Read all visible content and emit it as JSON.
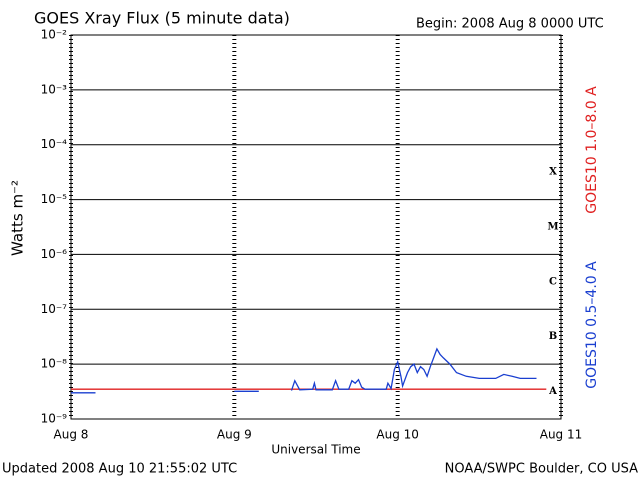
{
  "chart_data": {
    "type": "line",
    "title": "GOES Xray Flux (5 minute data)",
    "subtitle": "Begin:  2008 Aug 8 0000 UTC",
    "xlabel": "Universal Time",
    "ylabel": "Watts m⁻²",
    "footer_left": "Updated 2008 Aug 10 21:55:02 UTC",
    "footer_right": "NOAA/SWPC Boulder, CO USA",
    "log_y": true,
    "grid": true,
    "xlim": [
      8,
      11
    ],
    "xticks": [
      {
        "value": 8,
        "label": "Aug 8"
      },
      {
        "value": 9,
        "label": "Aug 9"
      },
      {
        "value": 10,
        "label": "Aug 10"
      },
      {
        "value": 11,
        "label": "Aug 11"
      }
    ],
    "ylim": [
      1e-09,
      0.01
    ],
    "yticks": [
      {
        "value": 1e-09,
        "label": "10⁻⁹"
      },
      {
        "value": 1e-08,
        "label": "10⁻⁸"
      },
      {
        "value": 1e-07,
        "label": "10⁻⁷"
      },
      {
        "value": 1e-06,
        "label": "10⁻⁶"
      },
      {
        "value": 1e-05,
        "label": "10⁻⁵"
      },
      {
        "value": 0.0001,
        "label": "10⁻⁴"
      },
      {
        "value": 0.001,
        "label": "10⁻³"
      },
      {
        "value": 0.01,
        "label": "10⁻²"
      }
    ],
    "flare_classes": [
      {
        "value": 0.0001,
        "label": "X"
      },
      {
        "value": 1e-05,
        "label": "M"
      },
      {
        "value": 1e-06,
        "label": "C"
      },
      {
        "value": 1e-07,
        "label": "B"
      },
      {
        "value": 1e-08,
        "label": "A"
      }
    ],
    "series": [
      {
        "name": "GOES10 1.0–8.0 A",
        "color": "#e02020",
        "x": [
          8.0,
          8.5,
          9.0,
          9.5,
          10.0,
          10.5,
          10.91
        ],
        "values": [
          3.5e-09,
          3.5e-09,
          3.5e-09,
          3.5e-09,
          3.5e-09,
          3.5e-09,
          3.5e-09
        ]
      },
      {
        "name": "GOES10 0.5–4.0 A",
        "color": "#1a3fd0",
        "x": [
          8.0,
          8.05,
          8.15,
          8.16,
          9.0,
          9.15,
          9.16,
          9.35,
          9.37,
          9.4,
          9.48,
          9.49,
          9.5,
          9.6,
          9.62,
          9.64,
          9.7,
          9.72,
          9.74,
          9.76,
          9.78,
          9.8,
          9.93,
          9.94,
          9.96,
          9.98,
          10.0,
          10.02,
          10.03,
          10.06,
          10.08,
          10.1,
          10.12,
          10.14,
          10.16,
          10.18,
          10.2,
          10.22,
          10.24,
          10.26,
          10.28,
          10.32,
          10.36,
          10.42,
          10.5,
          10.6,
          10.65,
          10.7,
          10.75,
          10.85
        ],
        "values": [
          3e-09,
          3e-09,
          3e-09,
          null,
          3.2e-09,
          3.2e-09,
          null,
          3.3e-09,
          5e-09,
          3.4e-09,
          3.5e-09,
          4.5e-09,
          3.4e-09,
          3.4e-09,
          5e-09,
          3.5e-09,
          3.5e-09,
          5e-09,
          4.5e-09,
          5.2e-09,
          3.8e-09,
          3.5e-09,
          3.5e-09,
          4.5e-09,
          3.6e-09,
          8e-09,
          1.1e-08,
          6e-09,
          4e-09,
          7e-09,
          9e-09,
          1e-08,
          7e-09,
          9e-09,
          8e-09,
          6e-09,
          9e-09,
          1.3e-08,
          1.9e-08,
          1.5e-08,
          1.3e-08,
          1e-08,
          7e-09,
          6e-09,
          5.5e-09,
          5.5e-09,
          6.5e-09,
          6e-09,
          5.5e-09,
          5.5e-09
        ]
      }
    ]
  }
}
